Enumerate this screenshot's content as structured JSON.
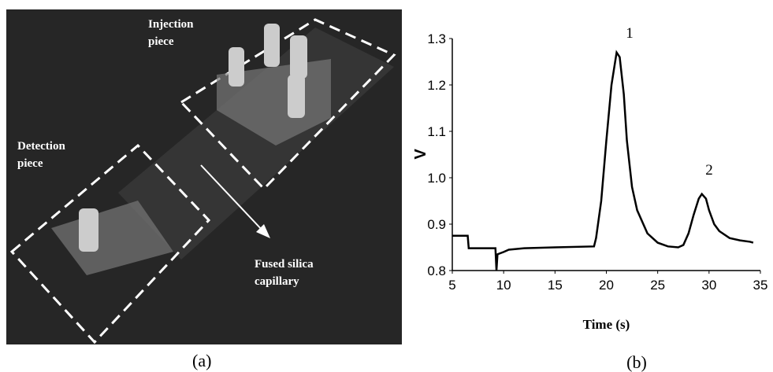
{
  "photo": {
    "labels": [
      "Injection piece",
      "Detection piece",
      "Fused silica capillary"
    ],
    "caption": "(a)"
  },
  "chart_data": {
    "type": "line",
    "caption": "(b)",
    "x_label": "Time (s)",
    "y_label": "V",
    "annotations": [
      "1",
      "2"
    ],
    "xlim": [
      5,
      35
    ],
    "xticks": [
      5,
      10,
      15,
      20,
      25,
      30,
      35
    ],
    "ylim": [
      0.8,
      1.3
    ],
    "yticks": [
      0.8,
      0.9,
      {
        "value": 1,
        "label": "1.0"
      },
      1.1,
      1.2,
      1.3
    ],
    "grid": false,
    "color": "#000000",
    "x": [
      5,
      6.5,
      6.6,
      9.2,
      9.3,
      9.4,
      10,
      10.5,
      12,
      15,
      18.8,
      19,
      19.5,
      20,
      20.5,
      21,
      21.3,
      21.7,
      22,
      22.5,
      23,
      24,
      25,
      26,
      27,
      27.5,
      28,
      28.5,
      29,
      29.3,
      29.7,
      30,
      30.5,
      31,
      32,
      33,
      34,
      34.3
    ],
    "values": [
      0.875,
      0.875,
      0.848,
      0.848,
      0.8,
      0.835,
      0.84,
      0.845,
      0.848,
      0.85,
      0.852,
      0.87,
      0.95,
      1.08,
      1.2,
      1.27,
      1.26,
      1.18,
      1.08,
      0.98,
      0.93,
      0.88,
      0.86,
      0.852,
      0.85,
      0.855,
      0.88,
      0.92,
      0.955,
      0.965,
      0.955,
      0.93,
      0.9,
      0.885,
      0.87,
      0.865,
      0.862,
      0.86
    ]
  }
}
